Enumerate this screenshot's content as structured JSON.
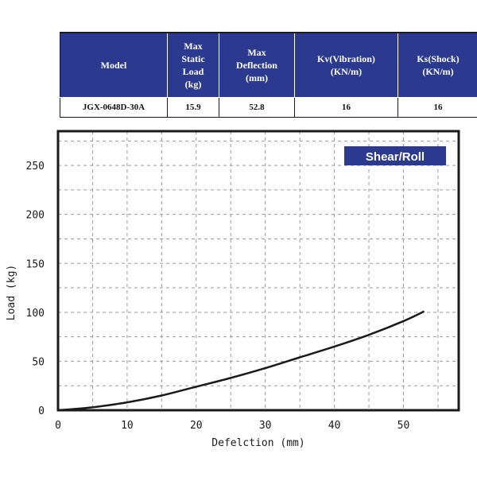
{
  "table": {
    "headers": [
      [
        "Model"
      ],
      [
        "Max",
        "Static",
        "Load",
        "(kg)"
      ],
      [
        "Max",
        "Deflection",
        "(mm)"
      ],
      [
        "Kv(Vibration)",
        "(KN/m)"
      ],
      [
        "Ks(Shock)",
        "(KN/m)"
      ]
    ],
    "row": [
      "JGX-0648D-30A",
      "15.9",
      "52.8",
      "16",
      "16"
    ]
  },
  "chart_data": {
    "type": "line",
    "annotation": "Shear/Roll",
    "xlabel": "Defelction (mm)",
    "ylabel": "Load (kg)",
    "xlim": [
      0,
      58
    ],
    "ylim": [
      0,
      285
    ],
    "xticks": [
      0,
      10,
      20,
      30,
      40,
      50
    ],
    "yticks": [
      0,
      50,
      100,
      150,
      200,
      250
    ],
    "grid": true,
    "series": [
      {
        "color": "#1a1a1a",
        "x": [
          0,
          5,
          10,
          15,
          20,
          25,
          30,
          35,
          40,
          45,
          50,
          53
        ],
        "y": [
          0,
          3,
          8,
          15,
          24,
          33,
          43,
          54,
          65,
          77,
          91,
          101
        ]
      }
    ]
  }
}
